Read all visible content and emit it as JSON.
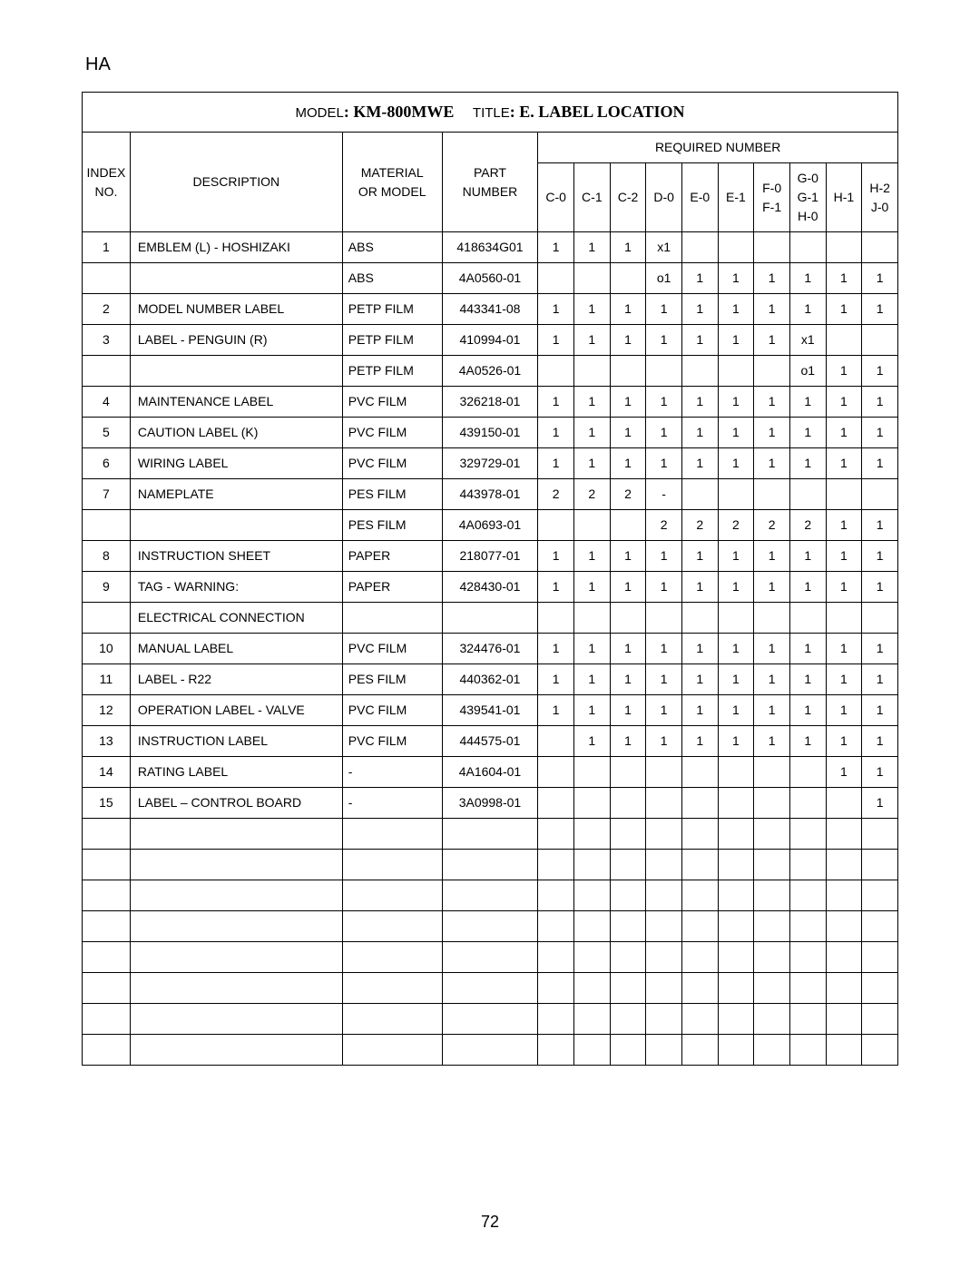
{
  "topLabel": "HA",
  "titleRow": {
    "modelLabel": "MODEL",
    "modelValue": "KM-800MWE",
    "titleLabel": "TITLE",
    "titleValue": "E. LABEL LOCATION"
  },
  "headers": {
    "index1": "INDEX",
    "index2": "NO.",
    "description": "DESCRIPTION",
    "material1": "MATERIAL",
    "material2": "OR MODEL",
    "part1": "PART",
    "part2": "NUMBER",
    "required": "REQUIRED NUMBER"
  },
  "subCols": [
    {
      "l1": "C-0",
      "l2": "",
      "l3": ""
    },
    {
      "l1": "C-1",
      "l2": "",
      "l3": ""
    },
    {
      "l1": "C-2",
      "l2": "",
      "l3": ""
    },
    {
      "l1": "D-0",
      "l2": "",
      "l3": ""
    },
    {
      "l1": "E-0",
      "l2": "",
      "l3": ""
    },
    {
      "l1": "E-1",
      "l2": "",
      "l3": ""
    },
    {
      "l1": "F-0",
      "l2": "F-1",
      "l3": ""
    },
    {
      "l1": "G-0",
      "l2": "G-1",
      "l3": "H-0"
    },
    {
      "l1": "H-1",
      "l2": "",
      "l3": ""
    },
    {
      "l1": "H-2",
      "l2": "J-0",
      "l3": ""
    }
  ],
  "rows": [
    {
      "idx": "1",
      "desc": "EMBLEM (L) - HOSHIZAKI",
      "mat": "ABS",
      "part": "418634G01",
      "v": [
        "1",
        "1",
        "1",
        "x1",
        "",
        "",
        "",
        "",
        "",
        ""
      ]
    },
    {
      "idx": "",
      "desc": "",
      "mat": "ABS",
      "part": "4A0560-01",
      "v": [
        "",
        "",
        "",
        "o1",
        "1",
        "1",
        "1",
        "1",
        "1",
        "1"
      ]
    },
    {
      "idx": "2",
      "desc": "MODEL NUMBER LABEL",
      "mat": "PETP FILM",
      "part": "443341-08",
      "v": [
        "1",
        "1",
        "1",
        "1",
        "1",
        "1",
        "1",
        "1",
        "1",
        "1"
      ]
    },
    {
      "idx": "3",
      "desc": "LABEL - PENGUIN (R)",
      "mat": "PETP FILM",
      "part": "410994-01",
      "v": [
        "1",
        "1",
        "1",
        "1",
        "1",
        "1",
        "1",
        "x1",
        "",
        ""
      ]
    },
    {
      "idx": "",
      "desc": "",
      "mat": "PETP FILM",
      "part": "4A0526-01",
      "v": [
        "",
        "",
        "",
        "",
        "",
        "",
        "",
        "o1",
        "1",
        "1"
      ]
    },
    {
      "idx": "4",
      "desc": "MAINTENANCE LABEL",
      "mat": "PVC FILM",
      "part": "326218-01",
      "v": [
        "1",
        "1",
        "1",
        "1",
        "1",
        "1",
        "1",
        "1",
        "1",
        "1"
      ]
    },
    {
      "idx": "5",
      "desc": "CAUTION LABEL (K)",
      "mat": "PVC FILM",
      "part": "439150-01",
      "v": [
        "1",
        "1",
        "1",
        "1",
        "1",
        "1",
        "1",
        "1",
        "1",
        "1"
      ]
    },
    {
      "idx": "6",
      "desc": "WIRING LABEL",
      "mat": "PVC FILM",
      "part": "329729-01",
      "v": [
        "1",
        "1",
        "1",
        "1",
        "1",
        "1",
        "1",
        "1",
        "1",
        "1"
      ]
    },
    {
      "idx": "7",
      "desc": "NAMEPLATE",
      "mat": "PES FILM",
      "part": "443978-01",
      "v": [
        "2",
        "2",
        "2",
        "-",
        "",
        "",
        "",
        "",
        "",
        ""
      ]
    },
    {
      "idx": "",
      "desc": "",
      "mat": "PES FILM",
      "part": "4A0693-01",
      "v": [
        "",
        "",
        "",
        "2",
        "2",
        "2",
        "2",
        "2",
        "1",
        "1"
      ]
    },
    {
      "idx": "8",
      "desc": "INSTRUCTION SHEET",
      "mat": "PAPER",
      "part": "218077-01",
      "v": [
        "1",
        "1",
        "1",
        "1",
        "1",
        "1",
        "1",
        "1",
        "1",
        "1"
      ]
    },
    {
      "idx": "9",
      "desc": "TAG - WARNING:",
      "mat": "PAPER",
      "part": "428430-01",
      "v": [
        "1",
        "1",
        "1",
        "1",
        "1",
        "1",
        "1",
        "1",
        "1",
        "1"
      ]
    },
    {
      "idx": "",
      "desc": "ELECTRICAL CONNECTION",
      "mat": "",
      "part": "",
      "v": [
        "",
        "",
        "",
        "",
        "",
        "",
        "",
        "",
        "",
        ""
      ]
    },
    {
      "idx": "10",
      "desc": "MANUAL LABEL",
      "mat": "PVC FILM",
      "part": "324476-01",
      "v": [
        "1",
        "1",
        "1",
        "1",
        "1",
        "1",
        "1",
        "1",
        "1",
        "1"
      ]
    },
    {
      "idx": "11",
      "desc": "LABEL - R22",
      "mat": "PES FILM",
      "part": "440362-01",
      "v": [
        "1",
        "1",
        "1",
        "1",
        "1",
        "1",
        "1",
        "1",
        "1",
        "1"
      ]
    },
    {
      "idx": "12",
      "desc": "OPERATION LABEL -  VALVE",
      "mat": "PVC FILM",
      "part": "439541-01",
      "v": [
        "1",
        "1",
        "1",
        "1",
        "1",
        "1",
        "1",
        "1",
        "1",
        "1"
      ]
    },
    {
      "idx": "13",
      "desc": "INSTRUCTION LABEL",
      "mat": "PVC FILM",
      "part": "444575-01",
      "v": [
        "",
        "1",
        "1",
        "1",
        "1",
        "1",
        "1",
        "1",
        "1",
        "1"
      ]
    },
    {
      "idx": "14",
      "desc": "RATING LABEL",
      "mat": "-",
      "part": "4A1604-01",
      "v": [
        "",
        "",
        "",
        "",
        "",
        "",
        "",
        "",
        "1",
        "1"
      ]
    },
    {
      "idx": "15",
      "desc": "LABEL – CONTROL BOARD",
      "mat": "-",
      "part": "3A0998-01",
      "v": [
        "",
        "",
        "",
        "",
        "",
        "",
        "",
        "",
        "",
        "1"
      ]
    }
  ],
  "emptyRowCount": 8,
  "pageNumber": "72"
}
